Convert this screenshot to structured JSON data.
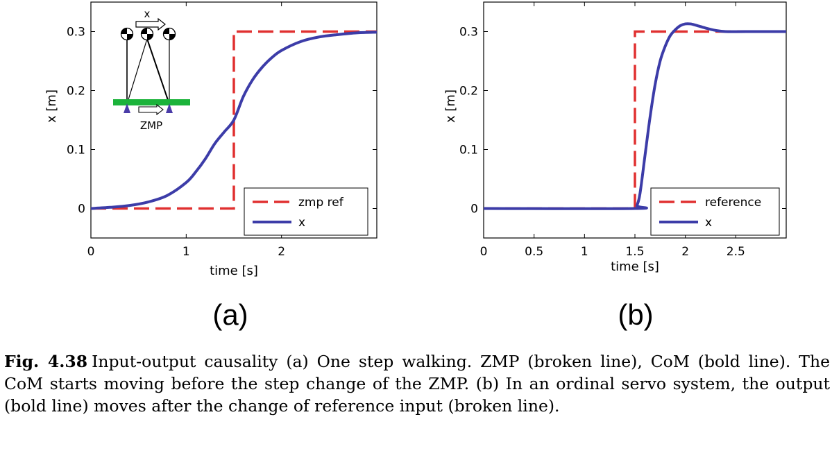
{
  "chart_data": [
    {
      "type": "line",
      "panel_label": "(a)",
      "xlabel": "time [s]",
      "ylabel": "x [m]",
      "xlim": [
        0,
        3
      ],
      "ylim": [
        -0.05,
        0.35
      ],
      "xticks": [
        0,
        1,
        2
      ],
      "xtick_labels": [
        "0",
        "1",
        "2"
      ],
      "yticks": [
        0,
        0.1,
        0.2,
        0.3
      ],
      "ytick_labels": [
        "0",
        "0.1",
        "0.2",
        "0.3"
      ],
      "legend_position": "bottom-right",
      "series": [
        {
          "name": "zmp ref",
          "style": "dashed",
          "color": "#e03030",
          "x": [
            0,
            1.5,
            1.5,
            3
          ],
          "y": [
            0,
            0,
            0.3,
            0.3
          ]
        },
        {
          "name": "x",
          "style": "solid",
          "color": "#3c3ca8",
          "x": [
            0,
            0.2,
            0.4,
            0.6,
            0.8,
            1.0,
            1.1,
            1.2,
            1.3,
            1.4,
            1.5,
            1.6,
            1.7,
            1.8,
            1.9,
            2.0,
            2.2,
            2.4,
            2.6,
            2.8,
            3.0
          ],
          "y": [
            0,
            0.002,
            0.005,
            0.011,
            0.022,
            0.044,
            0.062,
            0.084,
            0.11,
            0.13,
            0.15,
            0.19,
            0.219,
            0.24,
            0.256,
            0.268,
            0.283,
            0.291,
            0.295,
            0.298,
            0.299
          ]
        }
      ],
      "inset": {
        "arrow_label": "x",
        "ground_label": "ZMP",
        "ground_color": "#1bb33a",
        "foot_color": "#4a3ca8"
      }
    },
    {
      "type": "line",
      "panel_label": "(b)",
      "xlabel": "time [s]",
      "ylabel": "x [m]",
      "xlim": [
        0,
        3
      ],
      "ylim": [
        -0.05,
        0.35
      ],
      "xticks": [
        0,
        0.5,
        1,
        1.5,
        2,
        2.5
      ],
      "xtick_labels": [
        "0",
        "0.5",
        "1",
        "1.5",
        "2",
        "2.5"
      ],
      "yticks": [
        0,
        0.1,
        0.2,
        0.3
      ],
      "ytick_labels": [
        "0",
        "0.1",
        "0.2",
        "0.3"
      ],
      "legend_position": "bottom-right",
      "series": [
        {
          "name": "reference",
          "style": "dashed",
          "color": "#e03030",
          "x": [
            0,
            1.5,
            1.5,
            3
          ],
          "y": [
            0,
            0,
            0.3,
            0.3
          ]
        },
        {
          "name": "x",
          "style": "solid",
          "color": "#3c3ca8",
          "x": [
            0,
            1.5,
            1.52,
            1.55,
            1.6,
            1.65,
            1.7,
            1.75,
            1.8,
            1.85,
            1.9,
            1.95,
            2.0,
            2.05,
            2.1,
            2.2,
            2.3,
            2.4,
            2.6,
            3.0
          ],
          "y": [
            0,
            0,
            0.005,
            0.025,
            0.09,
            0.155,
            0.21,
            0.25,
            0.275,
            0.293,
            0.303,
            0.31,
            0.313,
            0.313,
            0.311,
            0.306,
            0.302,
            0.3,
            0.3,
            0.3
          ]
        }
      ]
    }
  ],
  "caption": {
    "fig_number": "Fig. 4.38",
    "text": "Input-output causality (a) One step walking. ZMP (broken line), CoM (bold line). The CoM starts moving before the step change of the ZMP. (b) In an ordinal servo system, the output (bold line) moves after the change of reference input (broken line)."
  }
}
